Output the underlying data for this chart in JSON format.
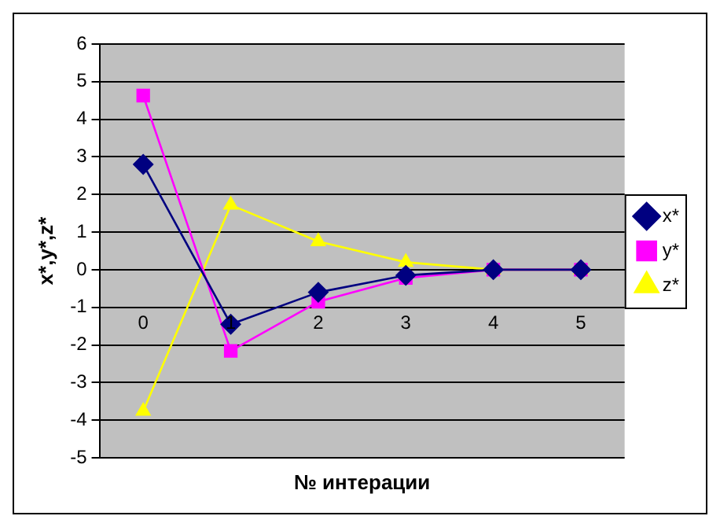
{
  "chart_data": {
    "type": "line",
    "xlabel": "№ интерации",
    "ylabel": "x*,y*,z*",
    "categories": [
      "0",
      "1",
      "2",
      "3",
      "4",
      "5"
    ],
    "series": [
      {
        "name": "x*",
        "color": "#000080",
        "marker": "diamond",
        "values": [
          2.8,
          -1.45,
          -0.6,
          -0.15,
          0,
          0
        ]
      },
      {
        "name": "y*",
        "color": "#ff00ff",
        "marker": "square",
        "values": [
          4.63,
          -2.16,
          -0.85,
          -0.22,
          0,
          0
        ]
      },
      {
        "name": "z*",
        "color": "#ffff00",
        "marker": "triangle",
        "values": [
          -3.76,
          1.72,
          0.75,
          0.2,
          0,
          0
        ]
      }
    ],
    "ylim": [
      -5,
      6
    ],
    "yticks": [
      -5,
      -4,
      -3,
      -2,
      -1,
      0,
      1,
      2,
      3,
      4,
      5,
      6
    ],
    "grid": "y",
    "legend": "right"
  }
}
